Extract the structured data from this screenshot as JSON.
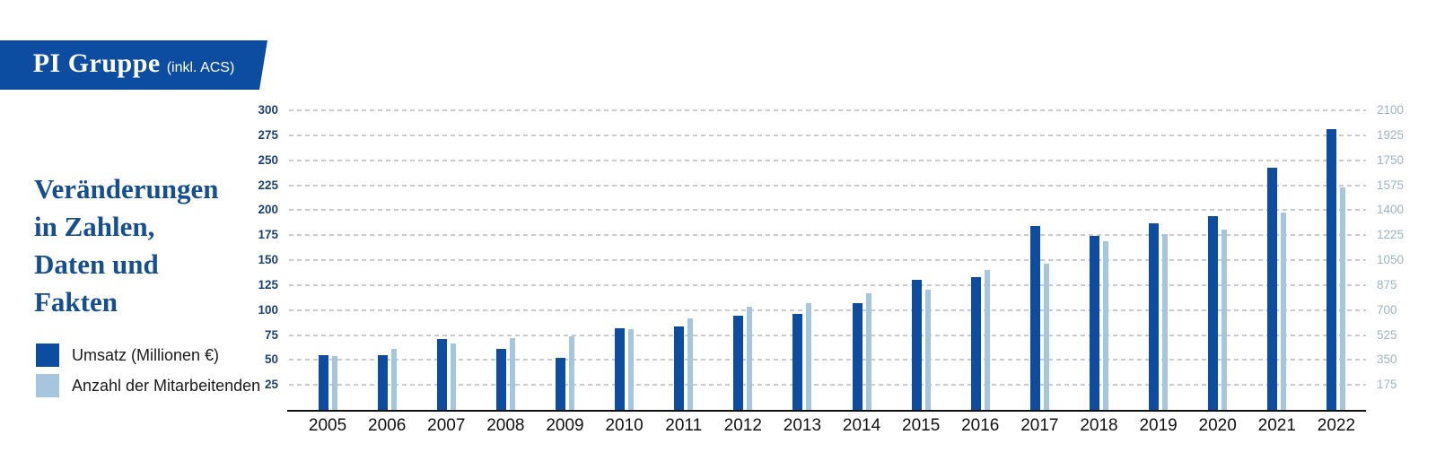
{
  "banner": {
    "title": "PI Gruppe",
    "suffix": "(inkl. ACS)"
  },
  "heading": "Veränderungen\nin Zahlen,\nDaten und\nFakten",
  "legend": {
    "umsatz": {
      "label": "Umsatz (Millionen €)",
      "color": "#0d4da1"
    },
    "mitarbeitende": {
      "label": "Anzahl der Mitarbeitenden",
      "color": "#a5c6dc"
    }
  },
  "colors": {
    "dark_blue": "#0d4da1",
    "light_blue": "#a5c6dc",
    "heading_blue": "#134f92",
    "left_tick": "#1c4272",
    "right_tick": "#9db3c6",
    "gridline": "#cbcbcb",
    "axis_line": "#111111"
  },
  "chart_data": {
    "type": "bar",
    "title": "Veränderungen in Zahlen, Daten und Fakten",
    "categories": [
      "2005",
      "2006",
      "2007",
      "2008",
      "2009",
      "2010",
      "2011",
      "2012",
      "2013",
      "2014",
      "2015",
      "2016",
      "2017",
      "2018",
      "2019",
      "2020",
      "2021",
      "2022"
    ],
    "series": [
      {
        "name": "Umsatz (Millionen €)",
        "axis": "left",
        "color": "#0d4da1",
        "values": [
          55,
          55,
          71,
          61,
          52,
          82,
          84,
          94,
          96,
          107,
          130,
          133,
          184,
          174,
          187,
          194,
          243,
          281
        ]
      },
      {
        "name": "Anzahl der Mitarbeitenden",
        "axis": "right",
        "color": "#a5c6dc",
        "values": [
          380,
          425,
          465,
          505,
          515,
          565,
          640,
          725,
          750,
          820,
          845,
          980,
          1025,
          1180,
          1230,
          1265,
          1385,
          1560
        ]
      }
    ],
    "left_axis": {
      "min": 0,
      "max": 300,
      "ticks": [
        25,
        50,
        75,
        100,
        125,
        150,
        175,
        200,
        225,
        250,
        275,
        300
      ]
    },
    "right_axis": {
      "min": 0,
      "max": 2100,
      "ticks": [
        175,
        350,
        525,
        700,
        875,
        1050,
        1225,
        1400,
        1575,
        1750,
        1925,
        2100
      ]
    },
    "grid": "horizontal-dashed",
    "legend_position": "left"
  }
}
